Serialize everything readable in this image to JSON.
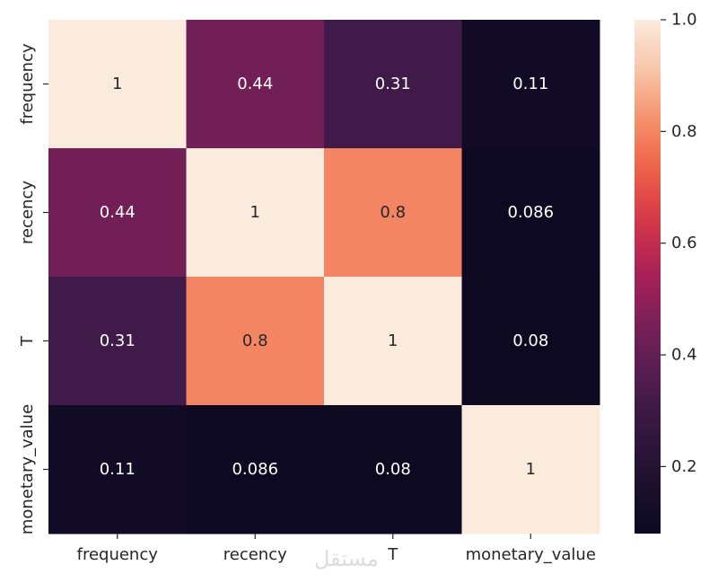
{
  "chart_data": {
    "type": "heatmap",
    "title": "",
    "xlabel": "",
    "ylabel": "",
    "x_labels": [
      "frequency",
      "recency",
      "T",
      "monetary_value"
    ],
    "y_labels": [
      "frequency",
      "recency",
      "T",
      "monetary_value"
    ],
    "values": [
      [
        1,
        0.44,
        0.31,
        0.11
      ],
      [
        0.44,
        1,
        0.8,
        0.086
      ],
      [
        0.31,
        0.8,
        1,
        0.08
      ],
      [
        0.11,
        0.086,
        0.08,
        1
      ]
    ],
    "value_labels": [
      [
        "1",
        "0.44",
        "0.31",
        "0.11"
      ],
      [
        "0.44",
        "1",
        "0.8",
        "0.086"
      ],
      [
        "0.31",
        "0.8",
        "1",
        "0.08"
      ],
      [
        "0.11",
        "0.086",
        "0.08",
        "1"
      ]
    ],
    "colorbar": {
      "range": [
        0.08,
        1.0
      ],
      "ticks": [
        0.2,
        0.4,
        0.6,
        0.8,
        1.0
      ],
      "tick_labels": [
        "0.2",
        "0.4",
        "0.6",
        "0.8",
        "1.0"
      ],
      "colormap": "rocket"
    }
  },
  "watermark": "مستقل"
}
